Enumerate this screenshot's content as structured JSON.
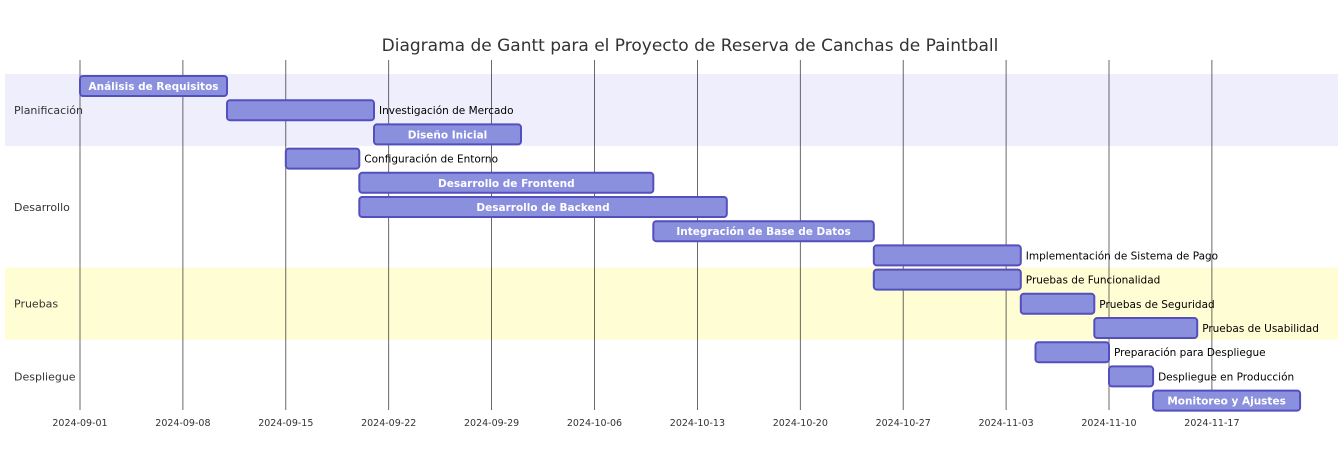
{
  "chart_data": {
    "type": "gantt",
    "title": "Diagrama de Gantt para el Proyecto de Reserva de Canchas de Paintball",
    "x_axis": {
      "type": "date",
      "range": [
        "2024-09-01",
        "2024-11-23"
      ],
      "ticks": [
        "2024-09-01",
        "2024-09-08",
        "2024-09-15",
        "2024-09-22",
        "2024-09-29",
        "2024-10-06",
        "2024-10-13",
        "2024-10-20",
        "2024-10-27",
        "2024-11-03",
        "2024-11-10",
        "2024-11-17"
      ],
      "grid": true
    },
    "sections": [
      {
        "name": "Planificación",
        "color": "#efeefd"
      },
      {
        "name": "Desarrollo",
        "color": "#ffffff"
      },
      {
        "name": "Pruebas",
        "color": "#fffdd3"
      },
      {
        "name": "Despliegue",
        "color": "#ffffff"
      }
    ],
    "tasks": [
      {
        "name": "Análisis de Requisitos",
        "section": "Planificación",
        "start": "2024-09-01",
        "end": "2024-09-11"
      },
      {
        "name": "Investigación de Mercado",
        "section": "Planificación",
        "start": "2024-09-11",
        "end": "2024-09-21"
      },
      {
        "name": "Diseño Inicial",
        "section": "Planificación",
        "start": "2024-09-21",
        "end": "2024-10-01"
      },
      {
        "name": "Configuración de Entorno",
        "section": "Desarrollo",
        "start": "2024-09-15",
        "end": "2024-09-20"
      },
      {
        "name": "Desarrollo de Frontend",
        "section": "Desarrollo",
        "start": "2024-09-20",
        "end": "2024-10-10"
      },
      {
        "name": "Desarrollo de Backend",
        "section": "Desarrollo",
        "start": "2024-09-20",
        "end": "2024-10-15"
      },
      {
        "name": "Integración de Base de Datos",
        "section": "Desarrollo",
        "start": "2024-10-10",
        "end": "2024-10-25"
      },
      {
        "name": "Implementación de Sistema de Pago",
        "section": "Desarrollo",
        "start": "2024-10-25",
        "end": "2024-11-04"
      },
      {
        "name": "Pruebas de Funcionalidad",
        "section": "Pruebas",
        "start": "2024-10-25",
        "end": "2024-11-04"
      },
      {
        "name": "Pruebas de Seguridad",
        "section": "Pruebas",
        "start": "2024-11-04",
        "end": "2024-11-09"
      },
      {
        "name": "Pruebas de Usabilidad",
        "section": "Pruebas",
        "start": "2024-11-09",
        "end": "2024-11-16"
      },
      {
        "name": "Preparación para Despliegue",
        "section": "Despliegue",
        "start": "2024-11-05",
        "end": "2024-11-10"
      },
      {
        "name": "Despliegue en Producción",
        "section": "Despliegue",
        "start": "2024-11-10",
        "end": "2024-11-13"
      },
      {
        "name": "Monitoreo y Ajustes",
        "section": "Despliegue",
        "start": "2024-11-13",
        "end": "2024-11-23"
      }
    ],
    "colors": {
      "bar_fill": "#8a90dd",
      "bar_stroke": "#534fbc",
      "grid": "#222222",
      "title": "#333333"
    }
  }
}
